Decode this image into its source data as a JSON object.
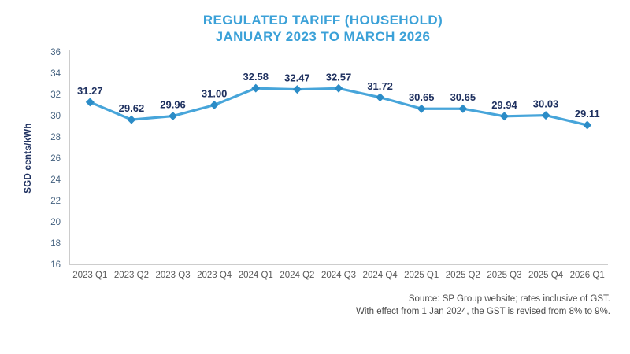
{
  "chart_data": {
    "type": "line",
    "title_lines": [
      "REGULATED TARIFF (HOUSEHOLD)",
      "JANUARY 2023 TO MARCH 2026"
    ],
    "categories": [
      "2023 Q1",
      "2023 Q2",
      "2023 Q3",
      "2023 Q4",
      "2024 Q1",
      "2024 Q2",
      "2024 Q3",
      "2024 Q4",
      "2025 Q1",
      "2025 Q2",
      "2025 Q3",
      "2025 Q4",
      "2026 Q1"
    ],
    "values": [
      31.27,
      29.62,
      29.96,
      31.0,
      32.58,
      32.47,
      32.57,
      31.72,
      30.65,
      30.65,
      29.94,
      30.03,
      29.11
    ],
    "value_labels": [
      "31.27",
      "29.62",
      "29.96",
      "31.00",
      "32.58",
      "32.47",
      "32.57",
      "31.72",
      "30.65",
      "30.65",
      "29.94",
      "30.03",
      "29.11"
    ],
    "xlabel": "",
    "ylabel": "SGD cents/kWh",
    "ylim": [
      16,
      36
    ],
    "ytick_step": 2,
    "grid": false,
    "legend_position": "none",
    "colors": {
      "title": "#3ba1d8",
      "line": "#47a5da",
      "marker": "#2b8cc7",
      "data_label": "#1f3160",
      "ytick": "#44617f",
      "ylabel": "#1f3160",
      "xtick": "#595959",
      "axis": "#c6c6c6",
      "source": "#4a4a4a"
    }
  },
  "source_lines": [
    "Source: SP Group website; rates inclusive of GST.",
    "With effect from 1 Jan 2024, the GST is revised from 8% to 9%."
  ]
}
